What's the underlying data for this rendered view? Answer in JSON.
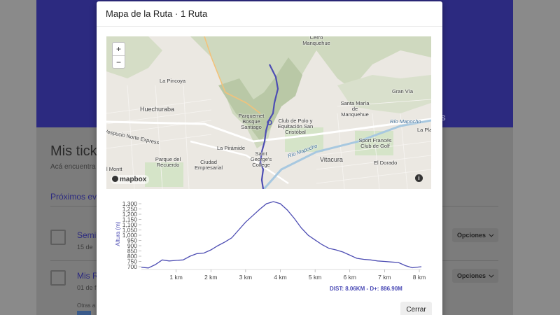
{
  "background": {
    "nav_tab": "ntos",
    "title": "Mis ticke",
    "subtitle": "Acá encuentra",
    "section": "Próximos ev",
    "items": [
      {
        "name": "Semi",
        "date": "15 de",
        "options": "Opciones"
      },
      {
        "name": "Mis R",
        "date": "01 de f",
        "options": "Opciones"
      }
    ],
    "small_text": "Otras a"
  },
  "modal": {
    "title": "Mapa de la Ruta · 1 Ruta",
    "close_label": "Cerrar"
  },
  "map": {
    "zoom_in": "+",
    "zoom_out": "−",
    "attribution": "mapbox",
    "info": "i",
    "labels": [
      "Cerro Manquehue",
      "La Pincoya",
      "Huechuraba",
      "Parquemet Bosque Santiago",
      "Club de Polo y Equitación San Cristóbal",
      "Santa María de Manquehue",
      "Gran Vía",
      "Río Mapocho",
      "Sport Francés Club de Golf",
      "La Pirámide",
      "Ciudad Empresarial",
      "Parque del Recuerdo",
      "Saint George's College",
      "Vitacura",
      "El Dorado",
      "La Pla",
      "l Montt",
      "Vespucio Norte Express"
    ]
  },
  "chart_data": {
    "type": "area",
    "ylabel": "Altura (m)",
    "xlabel": "",
    "x_unit": "km",
    "xlim": [
      0,
      8.06
    ],
    "ylim": [
      680,
      1320
    ],
    "x_ticks": [
      1,
      2,
      3,
      4,
      5,
      6,
      7,
      8
    ],
    "x_tick_labels": [
      "1 km",
      "2 km",
      "3 km",
      "4 km",
      "5 km",
      "6 km",
      "7 km",
      "8 km"
    ],
    "y_ticks": [
      700,
      750,
      800,
      850,
      900,
      950,
      1000,
      1050,
      1100,
      1150,
      1200,
      1250,
      1300
    ],
    "y_tick_labels": [
      "700",
      "750",
      "800",
      "850",
      "900",
      "950",
      "1,000",
      "1,050",
      "1,100",
      "1,150",
      "1,200",
      "1,250",
      "1,300"
    ],
    "x": [
      0,
      0.2,
      0.4,
      0.6,
      0.8,
      1.0,
      1.2,
      1.4,
      1.6,
      1.8,
      2.0,
      2.2,
      2.4,
      2.6,
      2.8,
      3.0,
      3.2,
      3.4,
      3.6,
      3.8,
      4.0,
      4.2,
      4.4,
      4.6,
      4.8,
      5.0,
      5.2,
      5.4,
      5.6,
      5.8,
      6.0,
      6.2,
      6.4,
      6.6,
      6.8,
      7.0,
      7.2,
      7.4,
      7.6,
      7.8,
      8.06
    ],
    "y": [
      695,
      688,
      720,
      765,
      755,
      760,
      765,
      800,
      825,
      830,
      860,
      900,
      935,
      975,
      1050,
      1125,
      1185,
      1245,
      1300,
      1320,
      1300,
      1240,
      1160,
      1070,
      1000,
      955,
      910,
      875,
      860,
      840,
      810,
      780,
      770,
      765,
      755,
      750,
      745,
      740,
      710,
      690,
      700
    ],
    "color": "#4d4db3",
    "summary": "DIST: 8.06KM - D+: 886.90M"
  }
}
